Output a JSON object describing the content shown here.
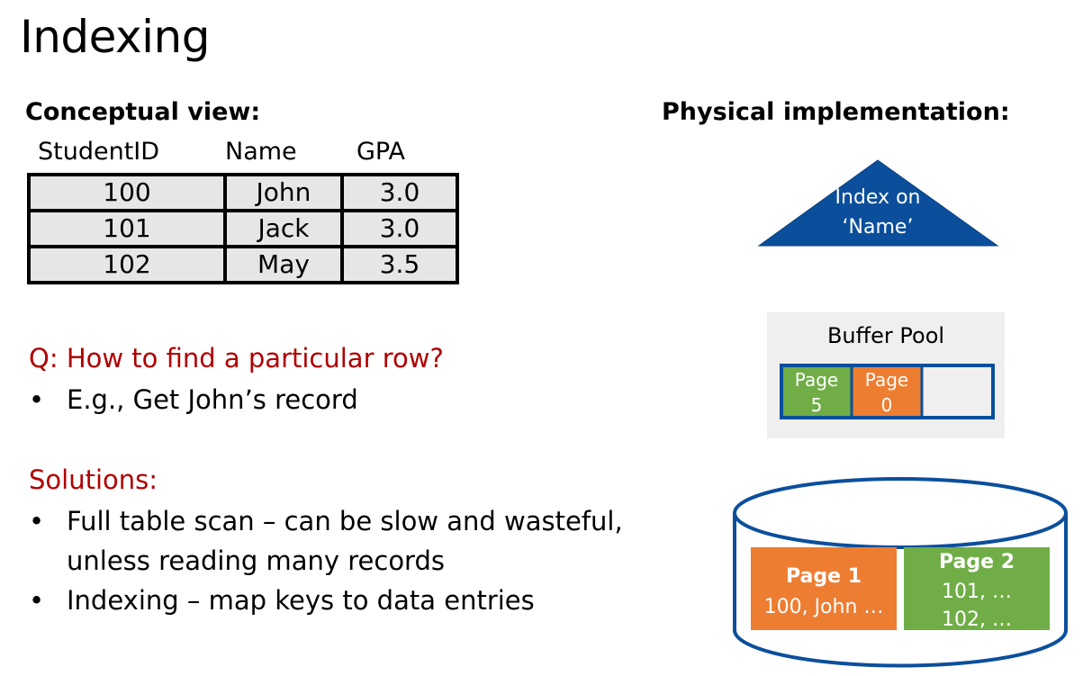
{
  "title": "Indexing",
  "conceptual_header": "Conceptual view:",
  "physical_header": "Physical implementation:",
  "table": {
    "columns": [
      "StudentID",
      "Name",
      "GPA"
    ],
    "rows": [
      [
        "100",
        "John",
        "3.0"
      ],
      [
        "101",
        "Jack",
        "3.0"
      ],
      [
        "102",
        "May",
        "3.5"
      ]
    ]
  },
  "question": "Q: How to find a particular row?",
  "question_bullets": [
    "E.g., Get John’s record"
  ],
  "solutions_header": "Solutions:",
  "solution_bullets": [
    "Full table scan – can be slow and wasteful, unless reading many records",
    "Indexing – map keys to data entries"
  ],
  "index": {
    "line1": "Index on",
    "line2": "‘Name’"
  },
  "buffer_pool": {
    "label": "Buffer Pool",
    "slots": [
      {
        "line1": "Page",
        "line2": "5"
      },
      {
        "line1": "Page",
        "line2": "0"
      }
    ]
  },
  "disk": {
    "page1": {
      "title": "Page 1",
      "line1": "100, John …"
    },
    "page2": {
      "title": "Page 2",
      "line1": "101, …",
      "line2": "102, …"
    }
  },
  "colors": {
    "red_text": "#b00000",
    "index_blue": "#0b4f9c",
    "orange": "#ed7d31",
    "green": "#70ad47",
    "outline_blue": "#0b4f9c",
    "table_fill": "#e6e6e6",
    "pool_bg": "#efefef"
  }
}
